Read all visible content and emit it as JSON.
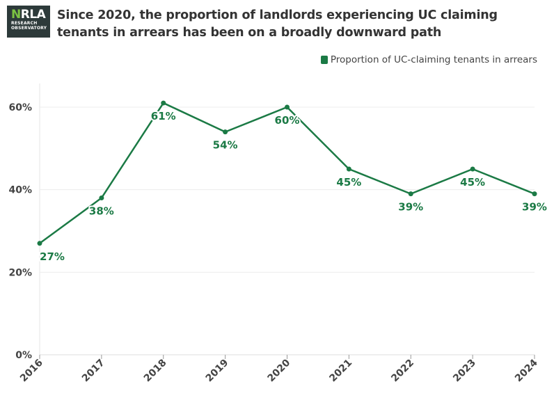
{
  "header": {
    "logo_mark_n": "N",
    "logo_mark_rest": "RLA",
    "logo_sub_1": "RESEARCH",
    "logo_sub_2": "OBSERVATORY",
    "title": "Since 2020, the proportion of landlords experiencing UC claiming tenants in arrears has been on a broadly downward path"
  },
  "chart_data": {
    "type": "line",
    "title": "Since 2020, the proportion of landlords experiencing UC claiming tenants in arrears has been on a broadly downward path",
    "xlabel": "",
    "ylabel": "",
    "categories": [
      "2016",
      "2017",
      "2018",
      "2019",
      "2020",
      "2021",
      "2022",
      "2023",
      "2024"
    ],
    "series": [
      {
        "name": "Proportion of UC-claiming tenants in arrears",
        "values": [
          27,
          38,
          61,
          54,
          60,
          45,
          39,
          45,
          39
        ],
        "labels": [
          "27%",
          "38%",
          "61%",
          "54%",
          "60%",
          "45%",
          "39%",
          "45%",
          "39%"
        ],
        "color": "#1b7a45"
      }
    ],
    "ylim": [
      0,
      65
    ],
    "yticks": [
      0,
      20,
      40,
      60
    ],
    "ytick_labels": [
      "0%",
      "20%",
      "40%",
      "60%"
    ],
    "grid": true,
    "legend_position": "top-right"
  }
}
